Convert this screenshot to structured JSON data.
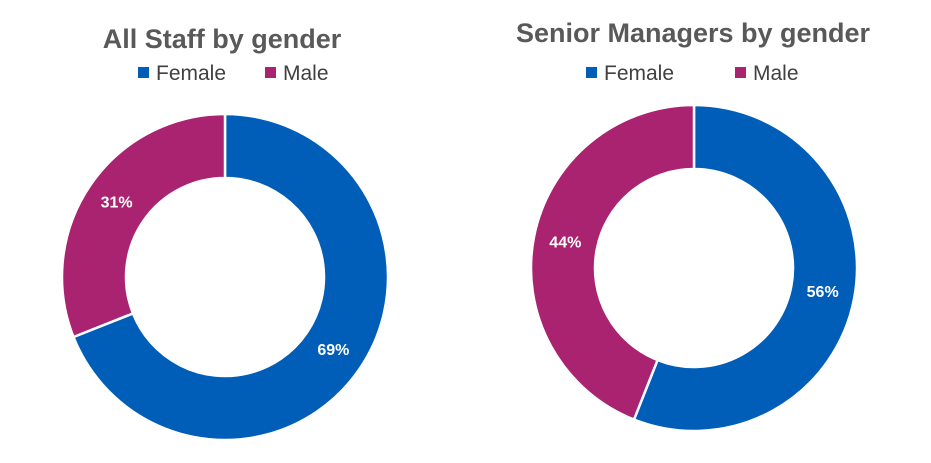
{
  "chart_data": [
    {
      "type": "pie",
      "title": "All Staff by gender",
      "legend_position": "top",
      "categories": [
        "Female",
        "Male"
      ],
      "values": [
        69,
        31
      ],
      "data_labels": [
        "69%",
        "31%"
      ],
      "colors": [
        "#005EB8",
        "#AA2370"
      ]
    },
    {
      "type": "pie",
      "title": "Senior Managers by gender",
      "legend_position": "top",
      "categories": [
        "Female",
        "Male"
      ],
      "values": [
        56,
        44
      ],
      "data_labels": [
        "56%",
        "44%"
      ],
      "colors": [
        "#005EB8",
        "#AA2370"
      ]
    }
  ]
}
